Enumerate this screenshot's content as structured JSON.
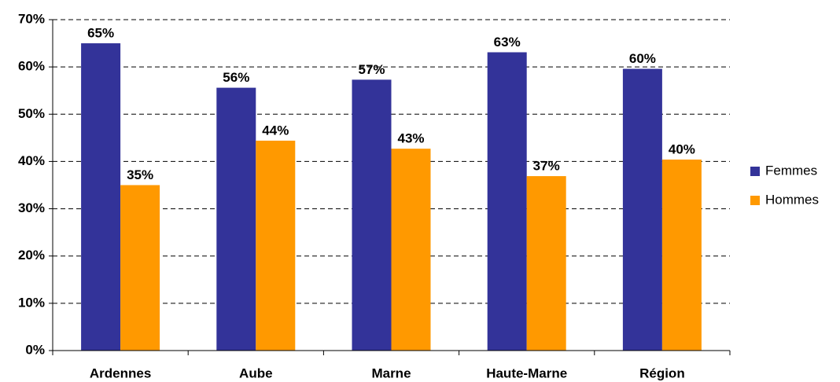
{
  "chart_data": {
    "type": "bar",
    "categories": [
      "Ardennes",
      "Aube",
      "Marne",
      "Haute-Marne",
      "Région"
    ],
    "series": [
      {
        "name": "Femmes",
        "color": "#333399",
        "values": [
          65,
          55.6,
          57.3,
          63.1,
          59.6
        ],
        "value_labels": [
          "65%",
          "56%",
          "57%",
          "63%",
          "60%"
        ]
      },
      {
        "name": "Hommes",
        "color": "#ff9900",
        "values": [
          35,
          44.4,
          42.7,
          36.9,
          40.4
        ],
        "value_labels": [
          "35%",
          "44%",
          "43%",
          "37%",
          "40%"
        ]
      }
    ],
    "ylim": [
      0,
      70
    ],
    "yticks": [
      {
        "value": 0,
        "label": "0%"
      },
      {
        "value": 10,
        "label": "10%"
      },
      {
        "value": 20,
        "label": "20%"
      },
      {
        "value": 30,
        "label": "30%"
      },
      {
        "value": 40,
        "label": "40%"
      },
      {
        "value": 50,
        "label": "50%"
      },
      {
        "value": 60,
        "label": "60%"
      },
      {
        "value": 70,
        "label": "70%"
      }
    ],
    "grid": true,
    "legend": "right"
  }
}
